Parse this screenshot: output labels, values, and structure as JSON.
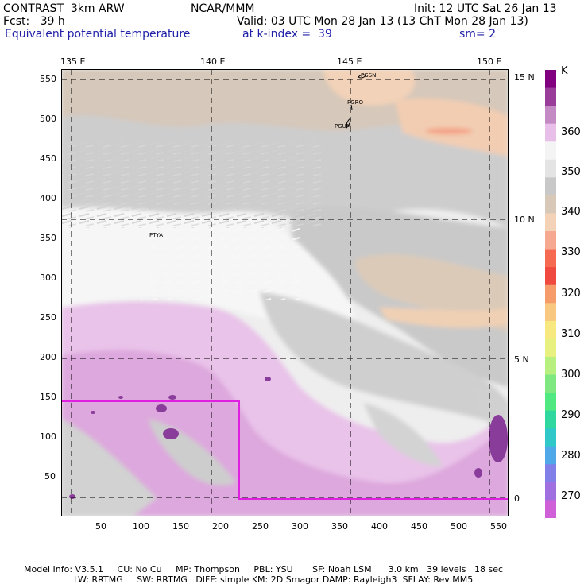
{
  "header": {
    "model": "CONTRAST  3km ARW",
    "org": "NCAR/MMM",
    "init": "Init: 12 UTC Sat 26 Jan 13",
    "fcst": "Fcst:   39 h",
    "valid": "Valid: 03 UTC Mon 28 Jan 13 (13 ChT Mon 28 Jan 13)",
    "field": "Equivalent potential temperature",
    "level": "at k-index =  39",
    "smooth": "sm= 2"
  },
  "map": {
    "lon_labels": [
      "135 E",
      "140 E",
      "145 E",
      "150 E"
    ],
    "lat_labels": [
      "15 N",
      "10 N",
      "5 N",
      "0"
    ],
    "y_ticks": [
      "550",
      "500",
      "450",
      "400",
      "350",
      "300",
      "250",
      "200",
      "150",
      "100",
      "50"
    ],
    "x_ticks": [
      "50",
      "100",
      "150",
      "200",
      "250",
      "300",
      "350",
      "400",
      "450",
      "500",
      "550"
    ],
    "stations": [
      "PGSN",
      "PGRO",
      "PGUM",
      "PTYA"
    ]
  },
  "colorbar": {
    "unit": "K",
    "labels": [
      "360",
      "350",
      "340",
      "330",
      "320",
      "310",
      "300",
      "290",
      "280",
      "270"
    ],
    "colors": [
      "#800080",
      "#9a3c9a",
      "#c48ac4",
      "#e8bfe8",
      "#f4f4f4",
      "#e4e4e4",
      "#c8c8c8",
      "#d8c8b8",
      "#f4d2b8",
      "#f7a890",
      "#f56a50",
      "#f04a40",
      "#f59c6a",
      "#f8c880",
      "#f8e880",
      "#e8f080",
      "#b8f080",
      "#80e880",
      "#50e880",
      "#30d8a0",
      "#30c8c8",
      "#50a8e8",
      "#8080e8",
      "#a070e0",
      "#d060d8"
    ]
  },
  "footer": {
    "line1": "Model Info: V3.5.1     CU: No Cu     MP: Thompson     PBL: YSU       SF: Noah LSM      3.0 km   39 levels   18 sec",
    "line2": "                  LW: RRTMG     SW: RRTMG   DIFF: simple KM: 2D Smagor DAMP: Rayleigh3  SFLAY: Rev MM5"
  }
}
